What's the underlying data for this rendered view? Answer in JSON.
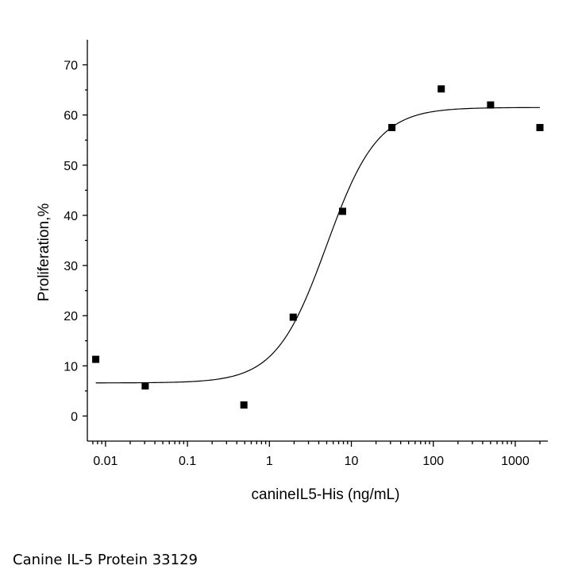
{
  "chart_data": {
    "type": "scatter",
    "xlabel": "canineIL5-His (ng/mL)",
    "ylabel": "Proliferation,%",
    "x_scale": "log",
    "xlim": [
      0.006,
      2500
    ],
    "ylim": [
      -5,
      75
    ],
    "x_ticks": [
      {
        "value": 0.01,
        "label": "0.01"
      },
      {
        "value": 0.1,
        "label": "0.1"
      },
      {
        "value": 1,
        "label": "1"
      },
      {
        "value": 10,
        "label": "10"
      },
      {
        "value": 100,
        "label": "100"
      },
      {
        "value": 1000,
        "label": "1000"
      }
    ],
    "y_ticks": [
      {
        "value": 0,
        "label": "0"
      },
      {
        "value": 10,
        "label": "10"
      },
      {
        "value": 20,
        "label": "20"
      },
      {
        "value": 30,
        "label": "30"
      },
      {
        "value": 40,
        "label": "40"
      },
      {
        "value": 50,
        "label": "50"
      },
      {
        "value": 60,
        "label": "60"
      },
      {
        "value": 70,
        "label": "70"
      }
    ],
    "points": [
      {
        "x": 0.0076,
        "y": 11.3
      },
      {
        "x": 0.0305,
        "y": 6.0
      },
      {
        "x": 0.488,
        "y": 2.2
      },
      {
        "x": 1.95,
        "y": 19.7
      },
      {
        "x": 7.81,
        "y": 40.8
      },
      {
        "x": 31.25,
        "y": 57.5
      },
      {
        "x": 125,
        "y": 65.2
      },
      {
        "x": 500,
        "y": 62.0
      },
      {
        "x": 2000,
        "y": 57.5
      }
    ],
    "fit": {
      "model": "four-parameter logistic",
      "bottom": 6.6,
      "top": 61.5,
      "ec50": 5.0,
      "hill": 1.4,
      "x_range": [
        0.0076,
        2000
      ]
    },
    "colors": {
      "marker": "#000000",
      "line": "#000000"
    }
  },
  "caption": "Canine IL-5 Protein 33129"
}
